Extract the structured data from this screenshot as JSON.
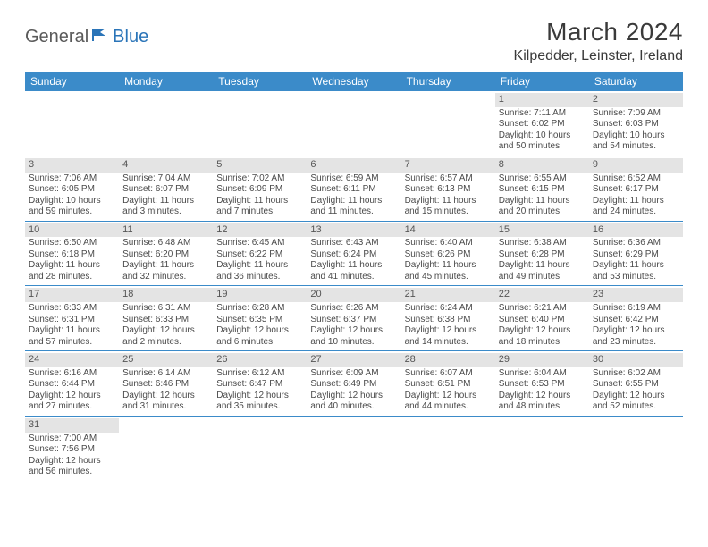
{
  "logo": {
    "general": "General",
    "blue": "Blue"
  },
  "title": "March 2024",
  "location": "Kilpedder, Leinster, Ireland",
  "colors": {
    "header_bg": "#3b8bc9",
    "header_text": "#ffffff",
    "daynum_bg": "#e4e4e4",
    "border": "#3b8bc9",
    "body_text": "#4a4a4a",
    "title_text": "#3a3a3a",
    "logo_gray": "#5a5a5a",
    "logo_blue": "#2a74b8"
  },
  "day_names": [
    "Sunday",
    "Monday",
    "Tuesday",
    "Wednesday",
    "Thursday",
    "Friday",
    "Saturday"
  ],
  "weeks": [
    [
      null,
      null,
      null,
      null,
      null,
      {
        "n": "1",
        "sr": "Sunrise: 7:11 AM",
        "ss": "Sunset: 6:02 PM",
        "d1": "Daylight: 10 hours",
        "d2": "and 50 minutes."
      },
      {
        "n": "2",
        "sr": "Sunrise: 7:09 AM",
        "ss": "Sunset: 6:03 PM",
        "d1": "Daylight: 10 hours",
        "d2": "and 54 minutes."
      }
    ],
    [
      {
        "n": "3",
        "sr": "Sunrise: 7:06 AM",
        "ss": "Sunset: 6:05 PM",
        "d1": "Daylight: 10 hours",
        "d2": "and 59 minutes."
      },
      {
        "n": "4",
        "sr": "Sunrise: 7:04 AM",
        "ss": "Sunset: 6:07 PM",
        "d1": "Daylight: 11 hours",
        "d2": "and 3 minutes."
      },
      {
        "n": "5",
        "sr": "Sunrise: 7:02 AM",
        "ss": "Sunset: 6:09 PM",
        "d1": "Daylight: 11 hours",
        "d2": "and 7 minutes."
      },
      {
        "n": "6",
        "sr": "Sunrise: 6:59 AM",
        "ss": "Sunset: 6:11 PM",
        "d1": "Daylight: 11 hours",
        "d2": "and 11 minutes."
      },
      {
        "n": "7",
        "sr": "Sunrise: 6:57 AM",
        "ss": "Sunset: 6:13 PM",
        "d1": "Daylight: 11 hours",
        "d2": "and 15 minutes."
      },
      {
        "n": "8",
        "sr": "Sunrise: 6:55 AM",
        "ss": "Sunset: 6:15 PM",
        "d1": "Daylight: 11 hours",
        "d2": "and 20 minutes."
      },
      {
        "n": "9",
        "sr": "Sunrise: 6:52 AM",
        "ss": "Sunset: 6:17 PM",
        "d1": "Daylight: 11 hours",
        "d2": "and 24 minutes."
      }
    ],
    [
      {
        "n": "10",
        "sr": "Sunrise: 6:50 AM",
        "ss": "Sunset: 6:18 PM",
        "d1": "Daylight: 11 hours",
        "d2": "and 28 minutes."
      },
      {
        "n": "11",
        "sr": "Sunrise: 6:48 AM",
        "ss": "Sunset: 6:20 PM",
        "d1": "Daylight: 11 hours",
        "d2": "and 32 minutes."
      },
      {
        "n": "12",
        "sr": "Sunrise: 6:45 AM",
        "ss": "Sunset: 6:22 PM",
        "d1": "Daylight: 11 hours",
        "d2": "and 36 minutes."
      },
      {
        "n": "13",
        "sr": "Sunrise: 6:43 AM",
        "ss": "Sunset: 6:24 PM",
        "d1": "Daylight: 11 hours",
        "d2": "and 41 minutes."
      },
      {
        "n": "14",
        "sr": "Sunrise: 6:40 AM",
        "ss": "Sunset: 6:26 PM",
        "d1": "Daylight: 11 hours",
        "d2": "and 45 minutes."
      },
      {
        "n": "15",
        "sr": "Sunrise: 6:38 AM",
        "ss": "Sunset: 6:28 PM",
        "d1": "Daylight: 11 hours",
        "d2": "and 49 minutes."
      },
      {
        "n": "16",
        "sr": "Sunrise: 6:36 AM",
        "ss": "Sunset: 6:29 PM",
        "d1": "Daylight: 11 hours",
        "d2": "and 53 minutes."
      }
    ],
    [
      {
        "n": "17",
        "sr": "Sunrise: 6:33 AM",
        "ss": "Sunset: 6:31 PM",
        "d1": "Daylight: 11 hours",
        "d2": "and 57 minutes."
      },
      {
        "n": "18",
        "sr": "Sunrise: 6:31 AM",
        "ss": "Sunset: 6:33 PM",
        "d1": "Daylight: 12 hours",
        "d2": "and 2 minutes."
      },
      {
        "n": "19",
        "sr": "Sunrise: 6:28 AM",
        "ss": "Sunset: 6:35 PM",
        "d1": "Daylight: 12 hours",
        "d2": "and 6 minutes."
      },
      {
        "n": "20",
        "sr": "Sunrise: 6:26 AM",
        "ss": "Sunset: 6:37 PM",
        "d1": "Daylight: 12 hours",
        "d2": "and 10 minutes."
      },
      {
        "n": "21",
        "sr": "Sunrise: 6:24 AM",
        "ss": "Sunset: 6:38 PM",
        "d1": "Daylight: 12 hours",
        "d2": "and 14 minutes."
      },
      {
        "n": "22",
        "sr": "Sunrise: 6:21 AM",
        "ss": "Sunset: 6:40 PM",
        "d1": "Daylight: 12 hours",
        "d2": "and 18 minutes."
      },
      {
        "n": "23",
        "sr": "Sunrise: 6:19 AM",
        "ss": "Sunset: 6:42 PM",
        "d1": "Daylight: 12 hours",
        "d2": "and 23 minutes."
      }
    ],
    [
      {
        "n": "24",
        "sr": "Sunrise: 6:16 AM",
        "ss": "Sunset: 6:44 PM",
        "d1": "Daylight: 12 hours",
        "d2": "and 27 minutes."
      },
      {
        "n": "25",
        "sr": "Sunrise: 6:14 AM",
        "ss": "Sunset: 6:46 PM",
        "d1": "Daylight: 12 hours",
        "d2": "and 31 minutes."
      },
      {
        "n": "26",
        "sr": "Sunrise: 6:12 AM",
        "ss": "Sunset: 6:47 PM",
        "d1": "Daylight: 12 hours",
        "d2": "and 35 minutes."
      },
      {
        "n": "27",
        "sr": "Sunrise: 6:09 AM",
        "ss": "Sunset: 6:49 PM",
        "d1": "Daylight: 12 hours",
        "d2": "and 40 minutes."
      },
      {
        "n": "28",
        "sr": "Sunrise: 6:07 AM",
        "ss": "Sunset: 6:51 PM",
        "d1": "Daylight: 12 hours",
        "d2": "and 44 minutes."
      },
      {
        "n": "29",
        "sr": "Sunrise: 6:04 AM",
        "ss": "Sunset: 6:53 PM",
        "d1": "Daylight: 12 hours",
        "d2": "and 48 minutes."
      },
      {
        "n": "30",
        "sr": "Sunrise: 6:02 AM",
        "ss": "Sunset: 6:55 PM",
        "d1": "Daylight: 12 hours",
        "d2": "and 52 minutes."
      }
    ],
    [
      {
        "n": "31",
        "sr": "Sunrise: 7:00 AM",
        "ss": "Sunset: 7:56 PM",
        "d1": "Daylight: 12 hours",
        "d2": "and 56 minutes."
      },
      null,
      null,
      null,
      null,
      null,
      null
    ]
  ]
}
